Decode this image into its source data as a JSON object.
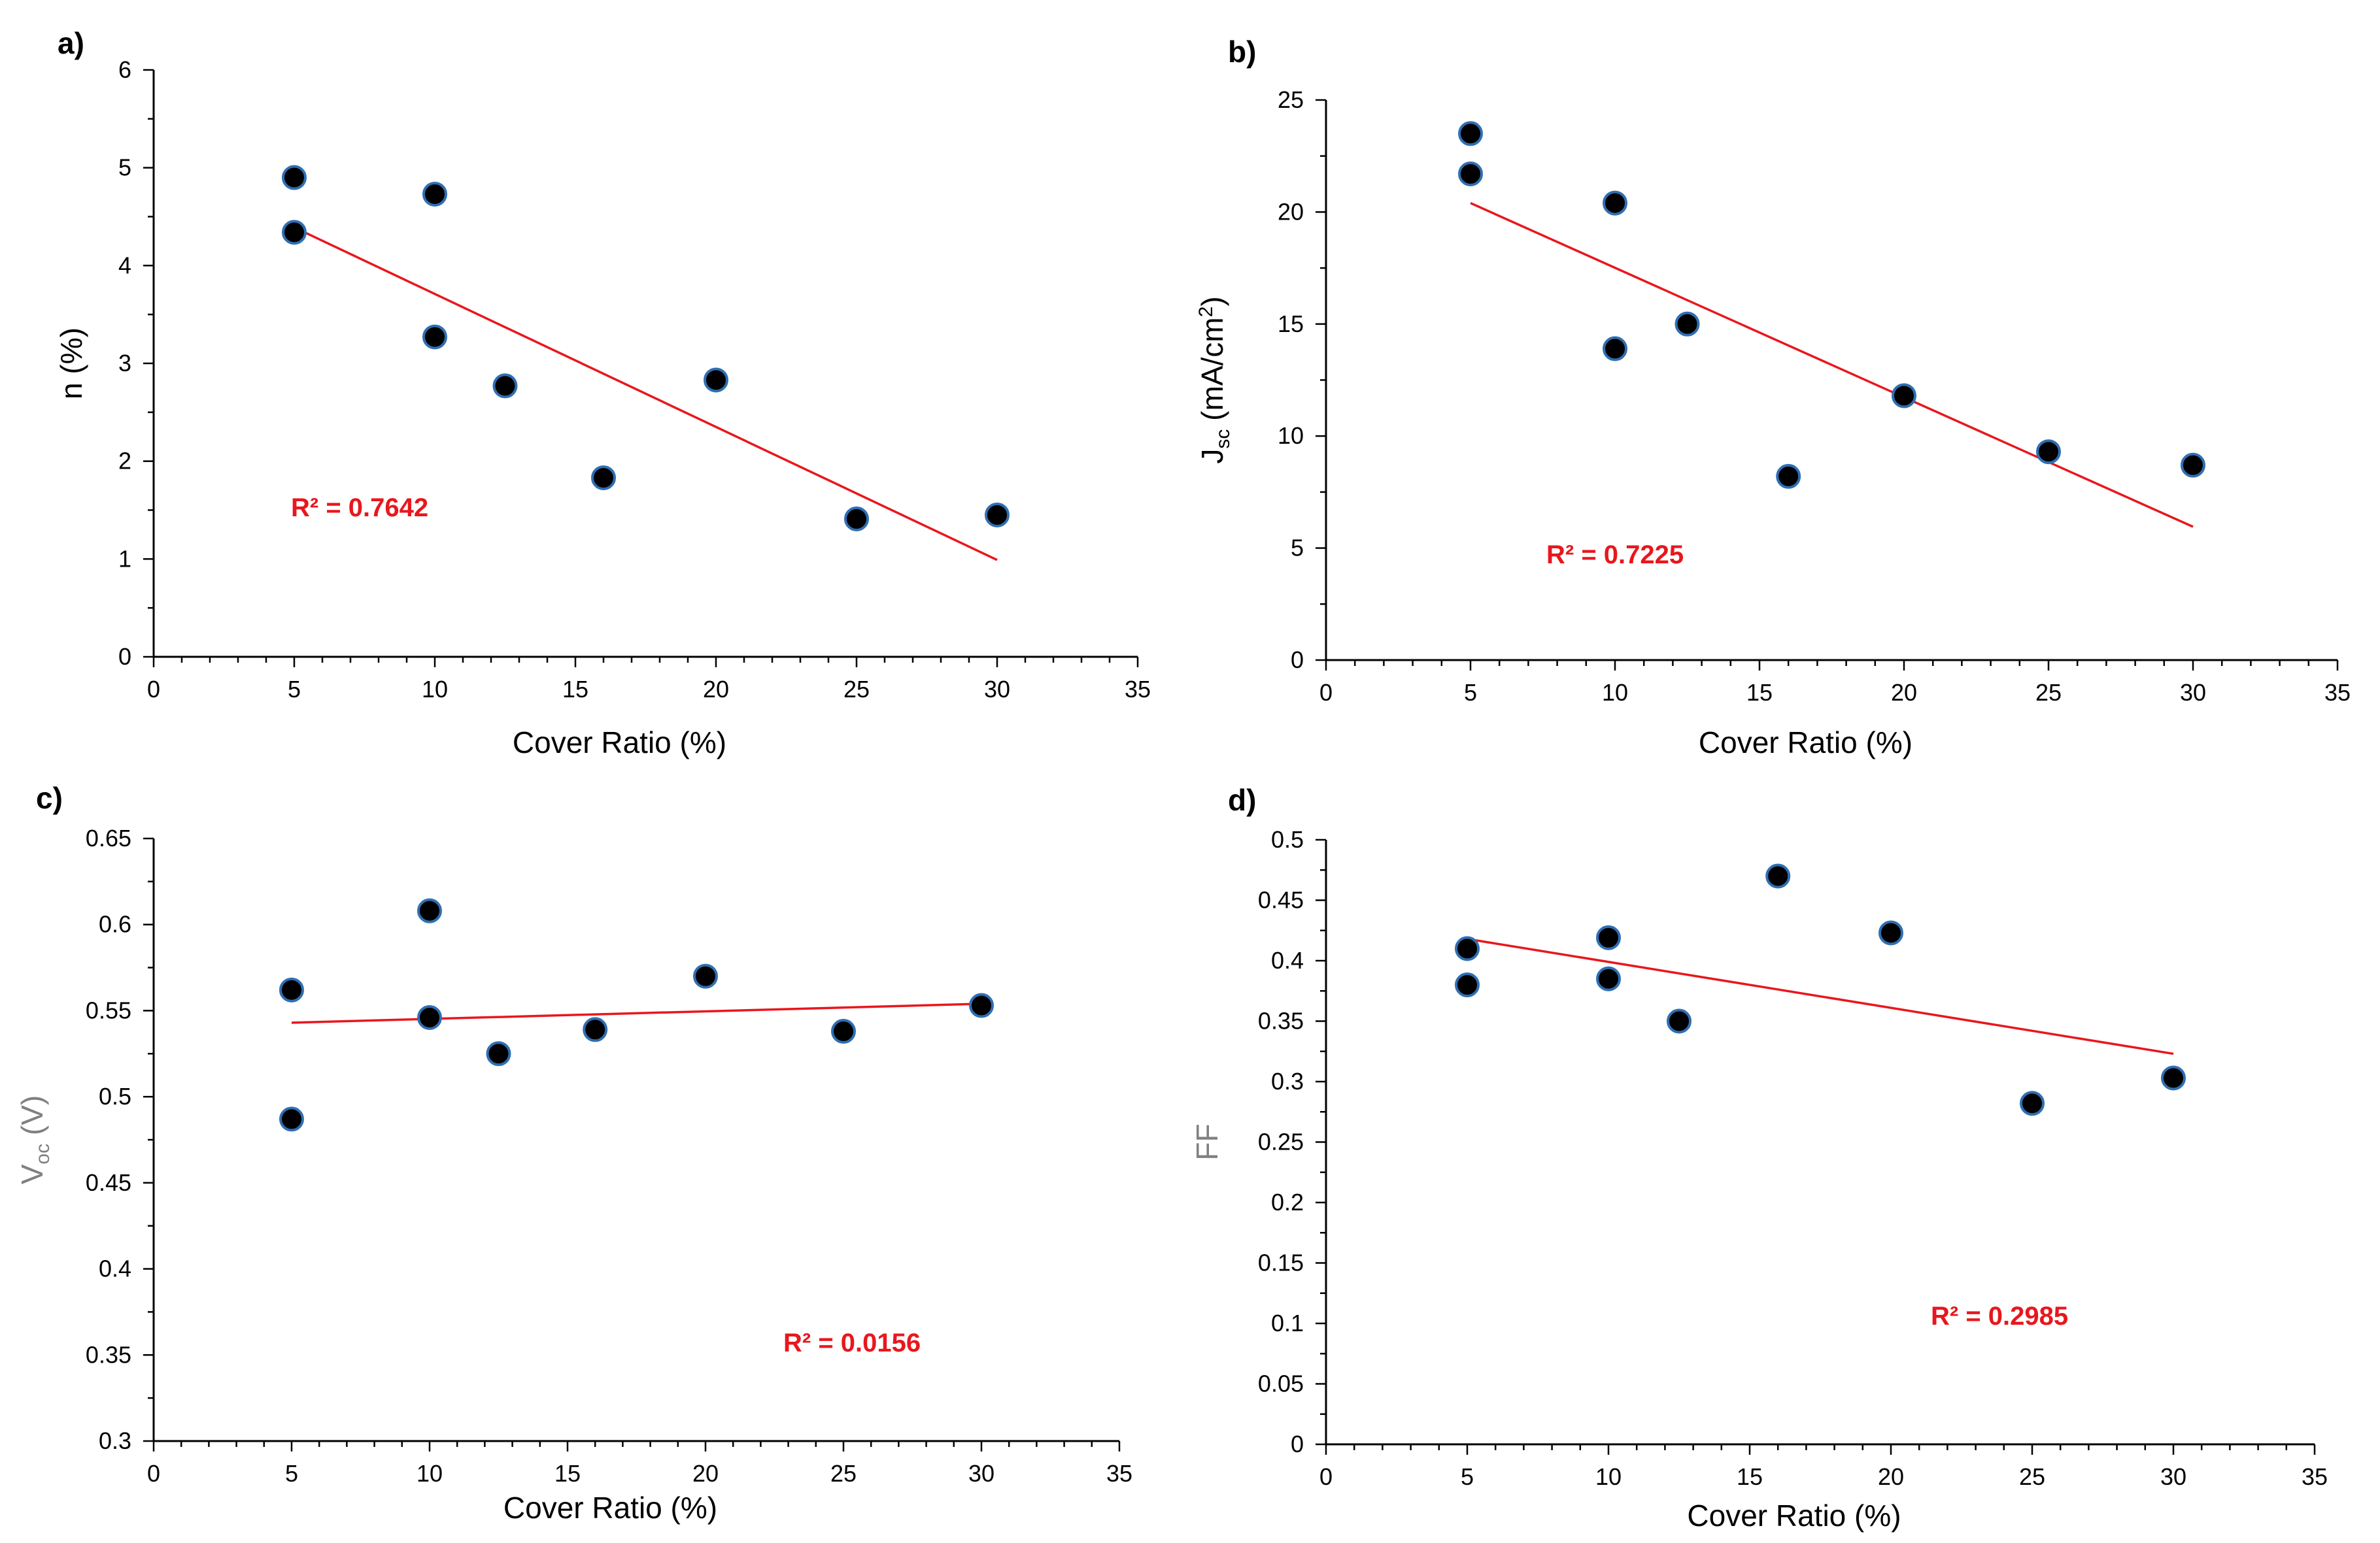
{
  "colors": {
    "marker_fill": "#000000",
    "marker_edge": "#2f6fb3",
    "trendline": "#e8171d",
    "r2_text": "#e8171d",
    "axis": "#000000",
    "gray_label": "#808080"
  },
  "chart_data": [
    {
      "type": "scatter",
      "panel_label": "a)",
      "xlabel": "Cover Ratio (%)",
      "ylabel": {
        "main": "n (%)",
        "sub": "",
        "tail": "",
        "sup": "",
        "end": ""
      },
      "x": [
        5,
        5,
        10,
        10,
        12.5,
        16,
        20,
        25,
        30
      ],
      "y": [
        4.9,
        4.34,
        4.73,
        3.27,
        2.77,
        1.83,
        2.83,
        1.41,
        1.45
      ],
      "xlim": [
        0,
        35
      ],
      "ylim": [
        0,
        6
      ],
      "xticks": [
        0,
        5,
        10,
        15,
        20,
        25,
        30,
        35
      ],
      "yticks": [
        0,
        1,
        2,
        3,
        4,
        5,
        6
      ],
      "trendline": {
        "x": [
          5,
          30
        ],
        "y": [
          4.39,
          0.99
        ]
      },
      "r2": "R² = 0.7642"
    },
    {
      "type": "scatter",
      "panel_label": "b)",
      "xlabel": "Cover Ratio (%)",
      "ylabel": {
        "main": "J",
        "sub": "sc",
        "tail": " (mA/cm",
        "sup": "2",
        "end": ")"
      },
      "x": [
        5,
        5,
        10,
        10,
        12.5,
        16,
        20,
        25,
        30
      ],
      "y": [
        23.5,
        21.7,
        20.4,
        13.9,
        15.0,
        8.2,
        11.8,
        9.3,
        8.7
      ],
      "xlim": [
        0,
        35
      ],
      "ylim": [
        0,
        25
      ],
      "xticks": [
        0,
        5,
        10,
        15,
        20,
        25,
        30,
        35
      ],
      "yticks": [
        0,
        5,
        10,
        15,
        20,
        25
      ],
      "trendline": {
        "x": [
          5,
          30
        ],
        "y": [
          20.4,
          5.95
        ]
      },
      "r2": "R² = 0.7225"
    },
    {
      "type": "scatter",
      "panel_label": "c)",
      "xlabel": "Cover Ratio (%)",
      "ylabel": {
        "main": "V",
        "sub": "oc",
        "tail": " (V)",
        "sup": "",
        "end": ""
      },
      "ylabel_color": "#808080",
      "x": [
        5,
        5,
        10,
        10,
        12.5,
        16,
        20,
        25,
        30
      ],
      "y": [
        0.562,
        0.487,
        0.608,
        0.546,
        0.525,
        0.539,
        0.57,
        0.538,
        0.553
      ],
      "xlim": [
        0,
        35
      ],
      "ylim": [
        0.3,
        0.65
      ],
      "xticks": [
        0,
        5,
        10,
        15,
        20,
        25,
        30,
        35
      ],
      "yticks": [
        0.3,
        0.35,
        0.4,
        0.45,
        0.5,
        0.55,
        0.6,
        0.65
      ],
      "ytick_labels": [
        "0.3",
        "0.35",
        "0.4",
        "0.45",
        "0.5",
        "0.55",
        "0.6",
        "0.65"
      ],
      "trendline": {
        "x": [
          5,
          30
        ],
        "y": [
          0.543,
          0.554
        ]
      },
      "r2": "R² = 0.0156"
    },
    {
      "type": "scatter",
      "panel_label": "d)",
      "xlabel": "Cover Ratio (%)",
      "ylabel": {
        "main": "FF",
        "sub": "",
        "tail": "",
        "sup": "",
        "end": ""
      },
      "ylabel_color": "#808080",
      "x": [
        5,
        5,
        10,
        10,
        12.5,
        16,
        20,
        25,
        30
      ],
      "y": [
        0.41,
        0.38,
        0.419,
        0.385,
        0.35,
        0.47,
        0.423,
        0.282,
        0.303
      ],
      "xlim": [
        0,
        35
      ],
      "ylim": [
        0,
        0.5
      ],
      "xticks": [
        0,
        5,
        10,
        15,
        20,
        25,
        30,
        35
      ],
      "yticks": [
        0,
        0.05,
        0.1,
        0.15,
        0.2,
        0.25,
        0.3,
        0.35,
        0.4,
        0.45,
        0.5
      ],
      "ytick_labels": [
        "0",
        "0.05",
        "0.1",
        "0.15",
        "0.2",
        "0.25",
        "0.3",
        "0.35",
        "0.4",
        "0.45",
        "0.5"
      ],
      "trendline": {
        "x": [
          5,
          30
        ],
        "y": [
          0.418,
          0.323
        ]
      },
      "r2": "R² = 0.2985"
    }
  ]
}
